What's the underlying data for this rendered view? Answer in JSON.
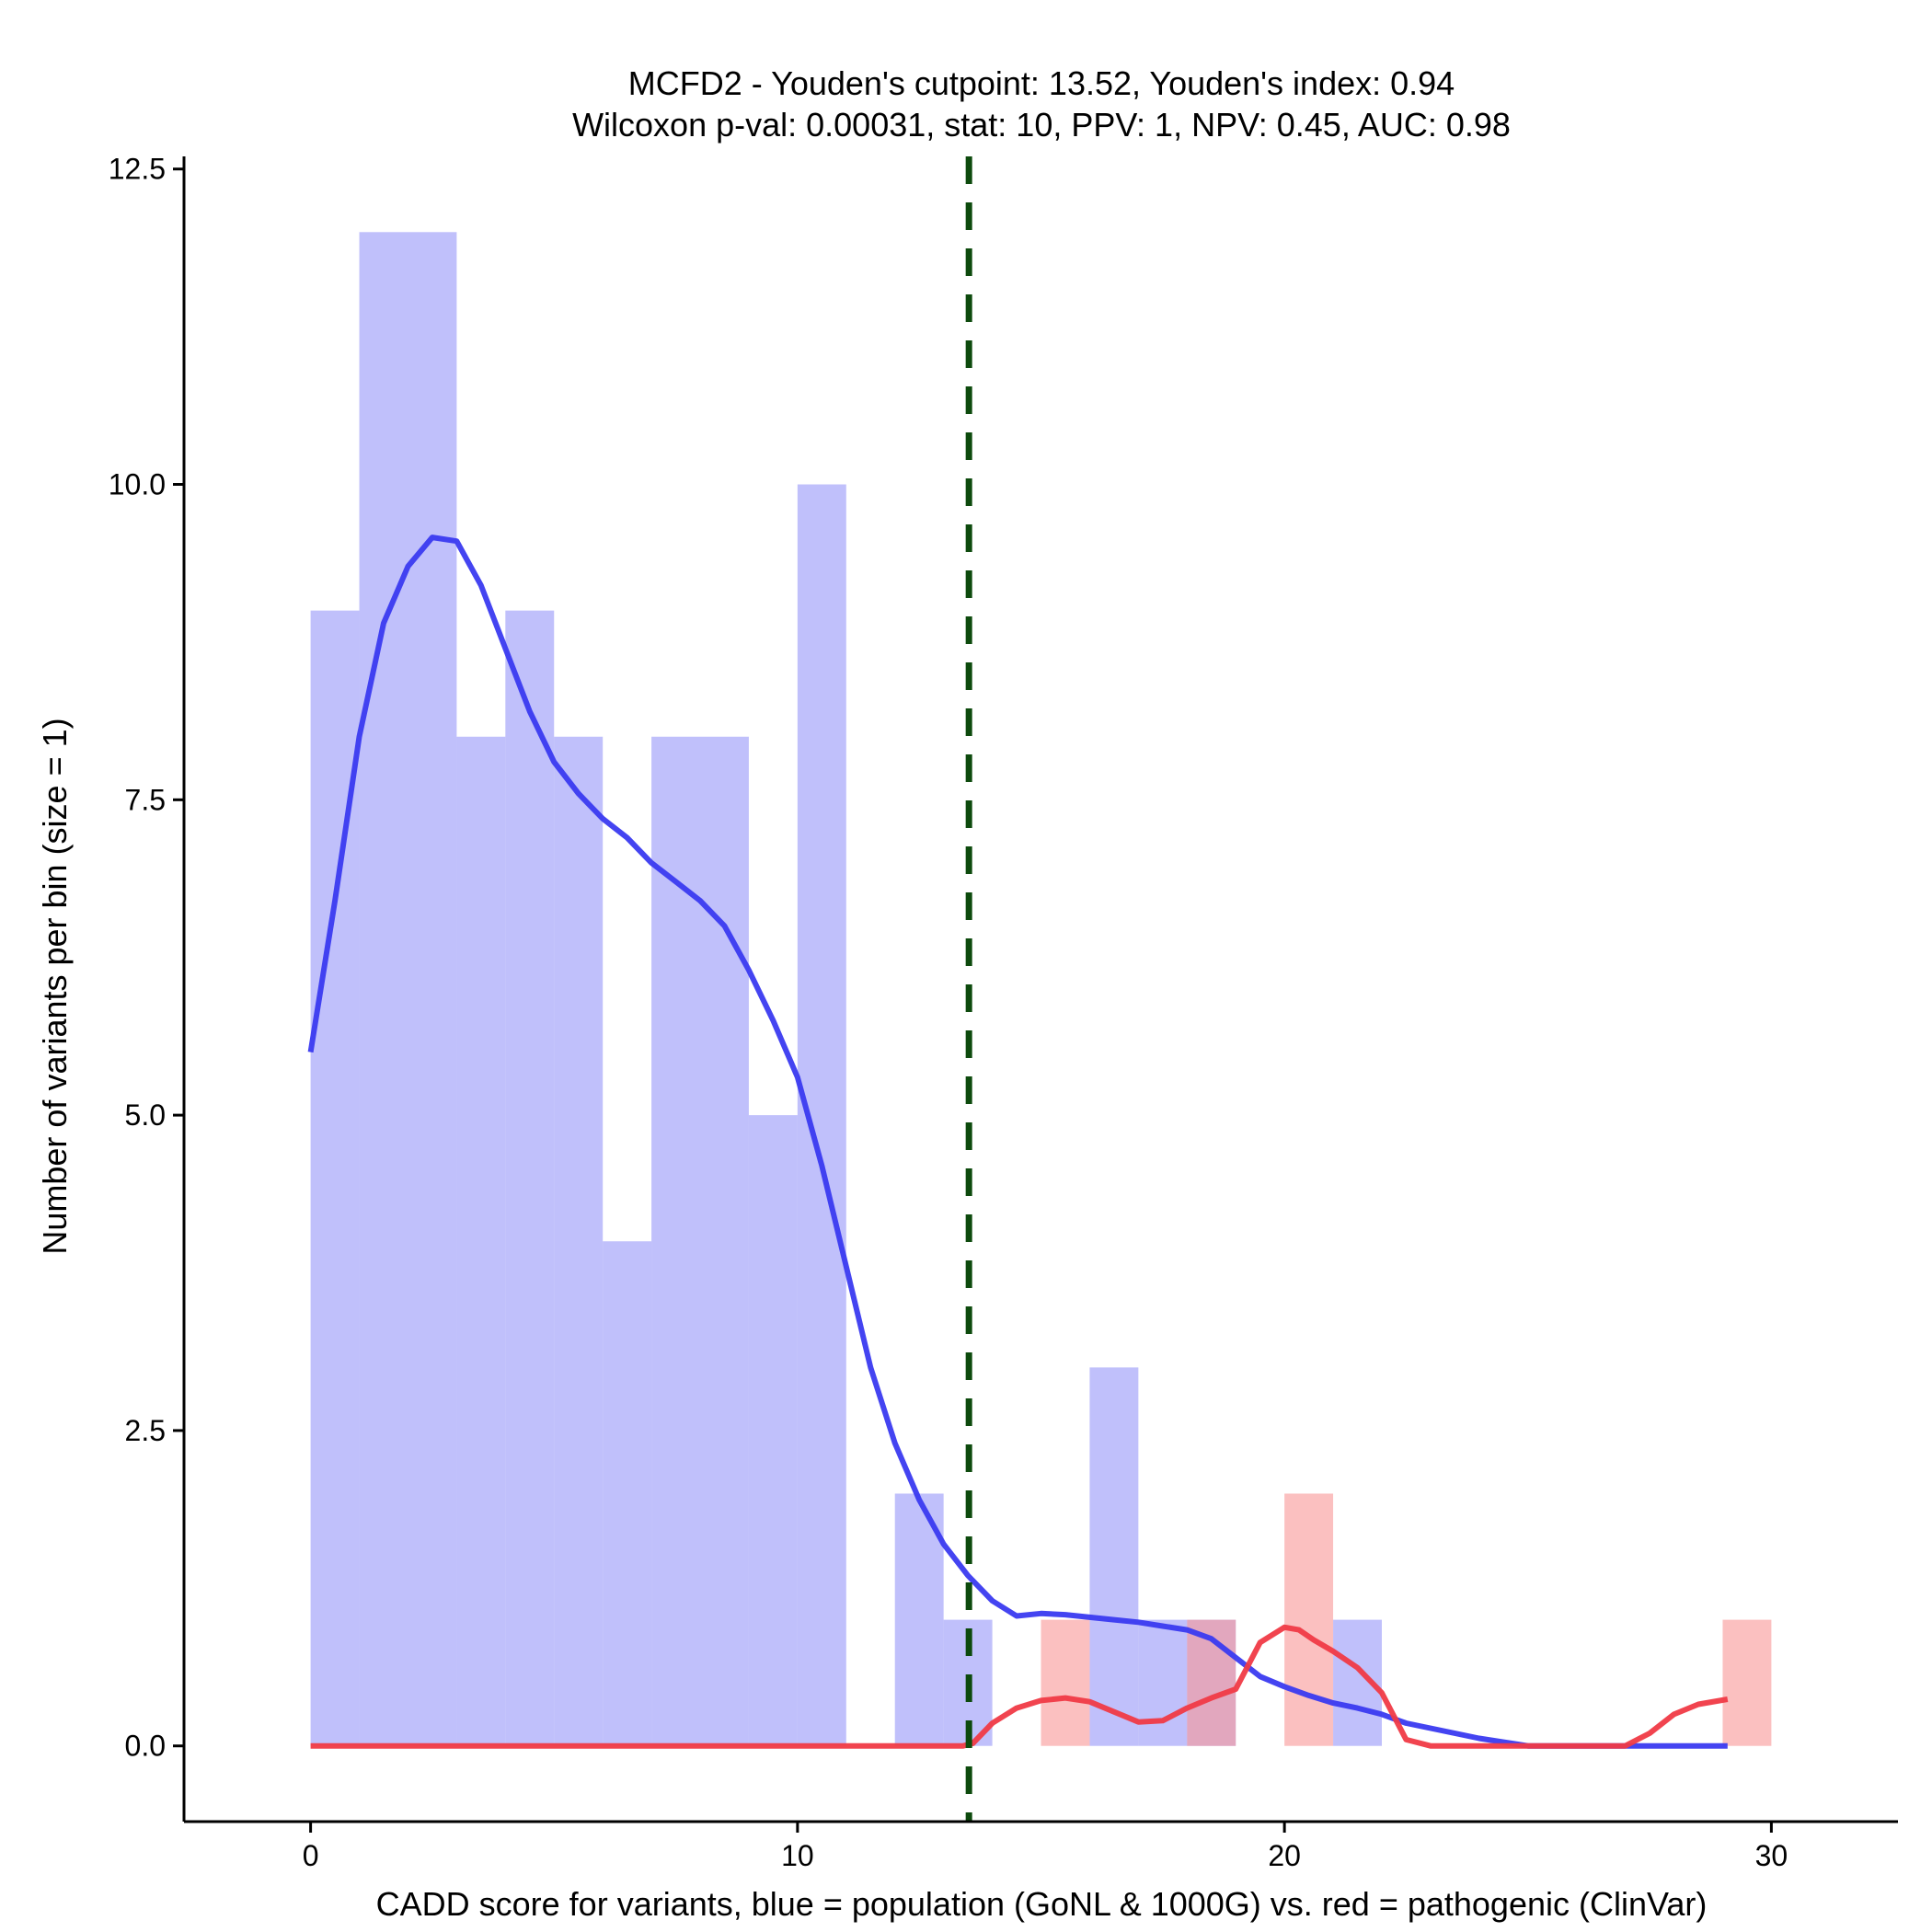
{
  "chart_data": {
    "type": "bar",
    "title": "MCFD2 - Youden's cutpoint: 13.52, Youden's index: 0.94",
    "subtitle": "Wilcoxon p-val: 0.00031, stat: 10, PPV: 1, NPV: 0.45, AUC: 0.98",
    "xlabel": "CADD score for variants, blue = population (GoNL & 1000G) vs. red = pathogenic (ClinVar)",
    "ylabel": "Number of variants per bin (size = 1)",
    "xlim": [
      -2.6,
      32.6
    ],
    "ylim": [
      -0.6,
      12.6
    ],
    "x_ticks": [
      0,
      10,
      20,
      30
    ],
    "x_tick_labels": [
      "0",
      "10",
      "20",
      "30"
    ],
    "y_ticks": [
      0,
      2.5,
      5,
      7.5,
      10,
      12.5
    ],
    "y_tick_labels": [
      "0.0",
      "2.5",
      "5.0",
      "7.5",
      "10.0",
      "12.5"
    ],
    "bin_width": 1,
    "grid": false,
    "cutpoint": 13.52,
    "colors": {
      "population_bar": "#c0c0fb",
      "pathogenic_bar": "#fbc0c0",
      "population_line": "#3a3af0",
      "pathogenic_line": "#f03a46",
      "cutpoint_line": "#0d4a0d",
      "axis": "#000000"
    },
    "series": [
      {
        "name": "population",
        "bins": [
          [
            0,
            9
          ],
          [
            1,
            12
          ],
          [
            2,
            12
          ],
          [
            3,
            8
          ],
          [
            4,
            9
          ],
          [
            5,
            8
          ],
          [
            6,
            4
          ],
          [
            7,
            8
          ],
          [
            8,
            8
          ],
          [
            9,
            5
          ],
          [
            10,
            10
          ],
          [
            12,
            2
          ],
          [
            13,
            1
          ],
          [
            16,
            3
          ],
          [
            17,
            1
          ],
          [
            18,
            1
          ],
          [
            21,
            1
          ]
        ],
        "density": [
          [
            0,
            5.5
          ],
          [
            0.5,
            6.7
          ],
          [
            1,
            8.0
          ],
          [
            1.5,
            8.9
          ],
          [
            2,
            9.35
          ],
          [
            2.5,
            9.58
          ],
          [
            3,
            9.55
          ],
          [
            3.5,
            9.2
          ],
          [
            4,
            8.7
          ],
          [
            4.5,
            8.2
          ],
          [
            5,
            7.8
          ],
          [
            5.5,
            7.55
          ],
          [
            6,
            7.35
          ],
          [
            6.5,
            7.2
          ],
          [
            7,
            7.0
          ],
          [
            7.5,
            6.85
          ],
          [
            8,
            6.7
          ],
          [
            8.5,
            6.5
          ],
          [
            9,
            6.15
          ],
          [
            9.5,
            5.75
          ],
          [
            10,
            5.3
          ],
          [
            10.5,
            4.6
          ],
          [
            11,
            3.8
          ],
          [
            11.5,
            3.0
          ],
          [
            12,
            2.4
          ],
          [
            12.5,
            1.95
          ],
          [
            13,
            1.6
          ],
          [
            13.5,
            1.35
          ],
          [
            14,
            1.15
          ],
          [
            14.5,
            1.03
          ],
          [
            15,
            1.05
          ],
          [
            15.5,
            1.04
          ],
          [
            16,
            1.02
          ],
          [
            16.5,
            1.0
          ],
          [
            17,
            0.98
          ],
          [
            17.5,
            0.95
          ],
          [
            18,
            0.92
          ],
          [
            18.5,
            0.85
          ],
          [
            19,
            0.7
          ],
          [
            19.5,
            0.55
          ],
          [
            20,
            0.47
          ],
          [
            20.5,
            0.4
          ],
          [
            21,
            0.34
          ],
          [
            21.5,
            0.3
          ],
          [
            22,
            0.25
          ],
          [
            22.5,
            0.18
          ],
          [
            23,
            0.14
          ],
          [
            23.5,
            0.1
          ],
          [
            24,
            0.06
          ],
          [
            24.5,
            0.03
          ],
          [
            25,
            0.0
          ],
          [
            26,
            0.0
          ],
          [
            27,
            0.0
          ],
          [
            28,
            0.0
          ],
          [
            29.1,
            0.0
          ]
        ]
      },
      {
        "name": "pathogenic",
        "bins": [
          [
            15,
            1
          ],
          [
            18,
            1
          ],
          [
            20,
            2
          ],
          [
            29,
            1
          ]
        ],
        "density": [
          [
            0,
            0.0
          ],
          [
            13.4,
            0.0
          ],
          [
            13.6,
            0.02
          ],
          [
            14,
            0.18
          ],
          [
            14.5,
            0.3
          ],
          [
            15,
            0.36
          ],
          [
            15.5,
            0.38
          ],
          [
            16,
            0.35
          ],
          [
            16.5,
            0.27
          ],
          [
            17,
            0.19
          ],
          [
            17.5,
            0.2
          ],
          [
            18,
            0.3
          ],
          [
            18.5,
            0.38
          ],
          [
            19,
            0.45
          ],
          [
            19.5,
            0.82
          ],
          [
            20,
            0.94
          ],
          [
            20.3,
            0.92
          ],
          [
            20.6,
            0.84
          ],
          [
            21,
            0.75
          ],
          [
            21.5,
            0.62
          ],
          [
            22,
            0.42
          ],
          [
            22.5,
            0.05
          ],
          [
            23,
            0.0
          ],
          [
            27,
            0.0
          ],
          [
            27.5,
            0.1
          ],
          [
            28,
            0.25
          ],
          [
            28.5,
            0.33
          ],
          [
            29.1,
            0.37
          ]
        ]
      }
    ]
  }
}
